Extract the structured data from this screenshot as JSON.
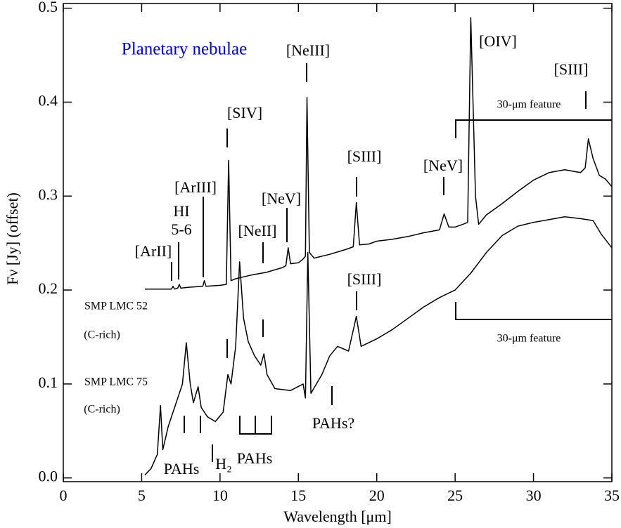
{
  "chart_data": {
    "type": "line",
    "x_label": "Wavelength [μm]",
    "y_label": "Fν [Jy] (offset)",
    "xlim": [
      0,
      35
    ],
    "xticks": [
      0,
      5,
      10,
      15,
      20,
      25,
      30,
      35
    ],
    "ylim": [
      -0.004,
      0.505
    ],
    "yticks": [
      {
        "value": 0,
        "label": "0.0"
      },
      0.1,
      0.2,
      0.3,
      0.4,
      0.5
    ],
    "series": [
      {
        "name": "SMP LMC 52",
        "color": "#000000",
        "x": [
          5.2,
          6,
          6.9,
          7.0,
          7.1,
          7.3,
          7.4,
          7.5,
          8,
          8.9,
          9.0,
          9.1,
          10,
          10.4,
          10.55,
          10.7,
          11,
          12,
          13,
          14,
          14.2,
          14.35,
          14.5,
          15,
          15.3,
          15.45,
          15.55,
          15.7,
          16,
          17,
          18,
          18.5,
          18.7,
          18.9,
          19.5,
          20,
          21,
          22,
          23,
          24,
          24.3,
          24.6,
          25,
          25.5,
          25.8,
          26.0,
          26.3,
          26.5,
          27,
          28,
          29,
          30,
          31,
          32,
          33,
          33.3,
          33.5,
          33.8,
          34.2,
          34.6,
          35
        ],
        "values": [
          0.201,
          0.201,
          0.201,
          0.204,
          0.201,
          0.202,
          0.206,
          0.202,
          0.203,
          0.204,
          0.21,
          0.204,
          0.205,
          0.206,
          0.338,
          0.21,
          0.212,
          0.216,
          0.219,
          0.224,
          0.226,
          0.245,
          0.228,
          0.229,
          0.233,
          0.236,
          0.405,
          0.24,
          0.234,
          0.238,
          0.243,
          0.246,
          0.293,
          0.248,
          0.249,
          0.252,
          0.254,
          0.257,
          0.261,
          0.264,
          0.281,
          0.267,
          0.267,
          0.27,
          0.272,
          0.49,
          0.3,
          0.27,
          0.28,
          0.292,
          0.305,
          0.317,
          0.325,
          0.328,
          0.325,
          0.33,
          0.361,
          0.34,
          0.322,
          0.318,
          0.31
        ]
      },
      {
        "name": "SMP LMC 75",
        "color": "#000000",
        "x": [
          5.2,
          5.6,
          6.0,
          6.2,
          6.35,
          6.7,
          7.2,
          7.6,
          7.85,
          8.1,
          8.3,
          8.6,
          8.8,
          9.2,
          9.7,
          10.2,
          10.5,
          10.7,
          11.0,
          11.25,
          11.5,
          11.8,
          12.2,
          12.6,
          12.8,
          13.0,
          13.5,
          14.5,
          15.3,
          15.45,
          15.6,
          15.8,
          16.5,
          17.0,
          17.5,
          18.2,
          18.7,
          19.0,
          20,
          21,
          22,
          23,
          24,
          25,
          26,
          27,
          28,
          29,
          30,
          31,
          32,
          33,
          33.8,
          34.3,
          35
        ],
        "values": [
          0.003,
          0.01,
          0.025,
          0.077,
          0.03,
          0.055,
          0.08,
          0.1,
          0.144,
          0.1,
          0.08,
          0.097,
          0.075,
          0.065,
          0.06,
          0.07,
          0.11,
          0.1,
          0.14,
          0.23,
          0.17,
          0.145,
          0.13,
          0.12,
          0.132,
          0.11,
          0.095,
          0.093,
          0.1,
          0.085,
          0.24,
          0.09,
          0.11,
          0.13,
          0.14,
          0.135,
          0.172,
          0.14,
          0.148,
          0.158,
          0.17,
          0.182,
          0.192,
          0.2,
          0.218,
          0.24,
          0.258,
          0.268,
          0.272,
          0.275,
          0.278,
          0.276,
          0.274,
          0.26,
          0.245
        ]
      }
    ],
    "annotations": [
      "Planetary nebulae",
      "[ArII]",
      "HI",
      "5-6",
      "[ArIII]",
      "[SIV]",
      "[NeV]",
      "[NeII]",
      "[NeIII]",
      "[SIII]",
      "[SIII]",
      "[NeV]",
      "[OIV]",
      "[SIII]",
      "30-μm feature",
      "30-μm feature",
      "(C-rich)",
      "(C-rich)",
      "PAHs",
      "H₂",
      "PAHs",
      "PAHs?"
    ],
    "title_color": "#0000dd"
  }
}
